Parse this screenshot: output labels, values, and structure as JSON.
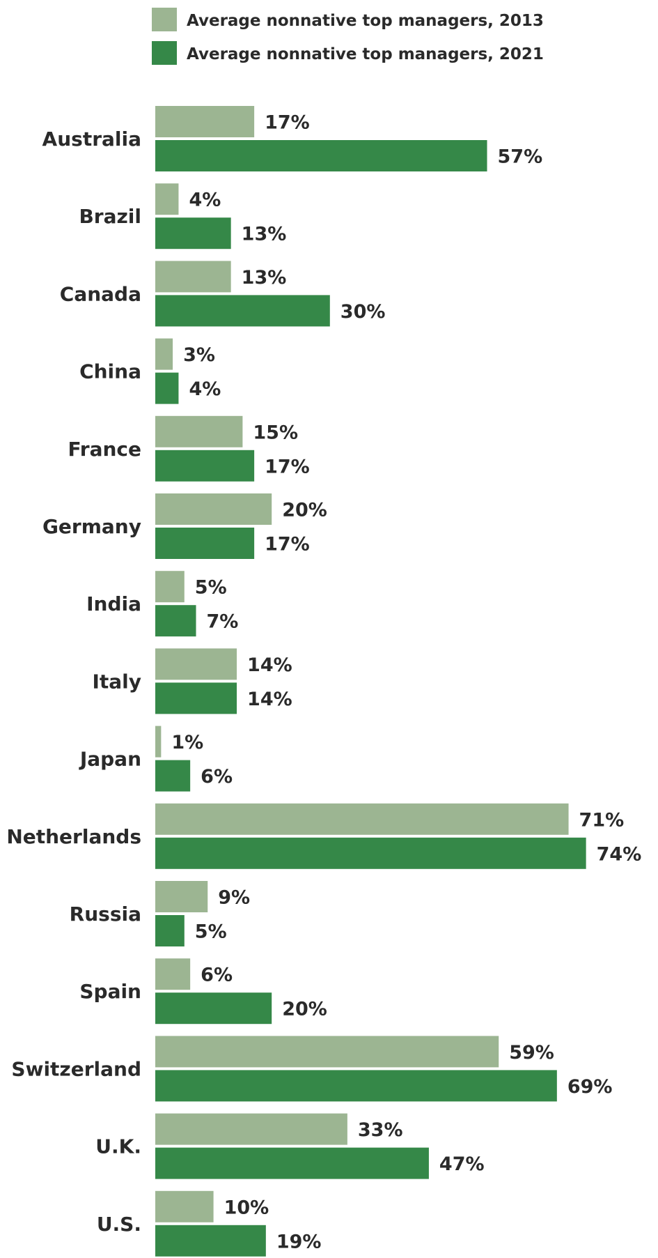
{
  "chart_data": {
    "type": "bar",
    "orientation": "horizontal",
    "categories": [
      "Australia",
      "Brazil",
      "Canada",
      "China",
      "France",
      "Germany",
      "India",
      "Italy",
      "Japan",
      "Netherlands",
      "Russia",
      "Spain",
      "Switzerland",
      "U.K.",
      "U.S."
    ],
    "series": [
      {
        "name": "Average nonnative top managers, 2013",
        "color": "#9cb592",
        "values": [
          17,
          4,
          13,
          3,
          15,
          20,
          5,
          14,
          1,
          71,
          9,
          6,
          59,
          33,
          10
        ],
        "labels": [
          "17%",
          "4%",
          "13%",
          "3%",
          "15%",
          "20%",
          "5%",
          "14%",
          "1%",
          "71%",
          "9%",
          "6%",
          "59%",
          "33%",
          "10%"
        ]
      },
      {
        "name": "Average nonnative top managers, 2021",
        "color": "#358848",
        "values": [
          57,
          13,
          30,
          4,
          17,
          17,
          7,
          14,
          6,
          74,
          5,
          20,
          69,
          47,
          19
        ],
        "labels": [
          "57%",
          "13%",
          "30%",
          "4%",
          "17%",
          "17%",
          "7%",
          "14%",
          "6%",
          "74%",
          "5%",
          "20%",
          "69%",
          "47%",
          "19%"
        ]
      }
    ],
    "title": "",
    "xlabel": "",
    "ylabel": "",
    "xlim": [
      0,
      100
    ],
    "grid": false,
    "legend_position": "top"
  }
}
